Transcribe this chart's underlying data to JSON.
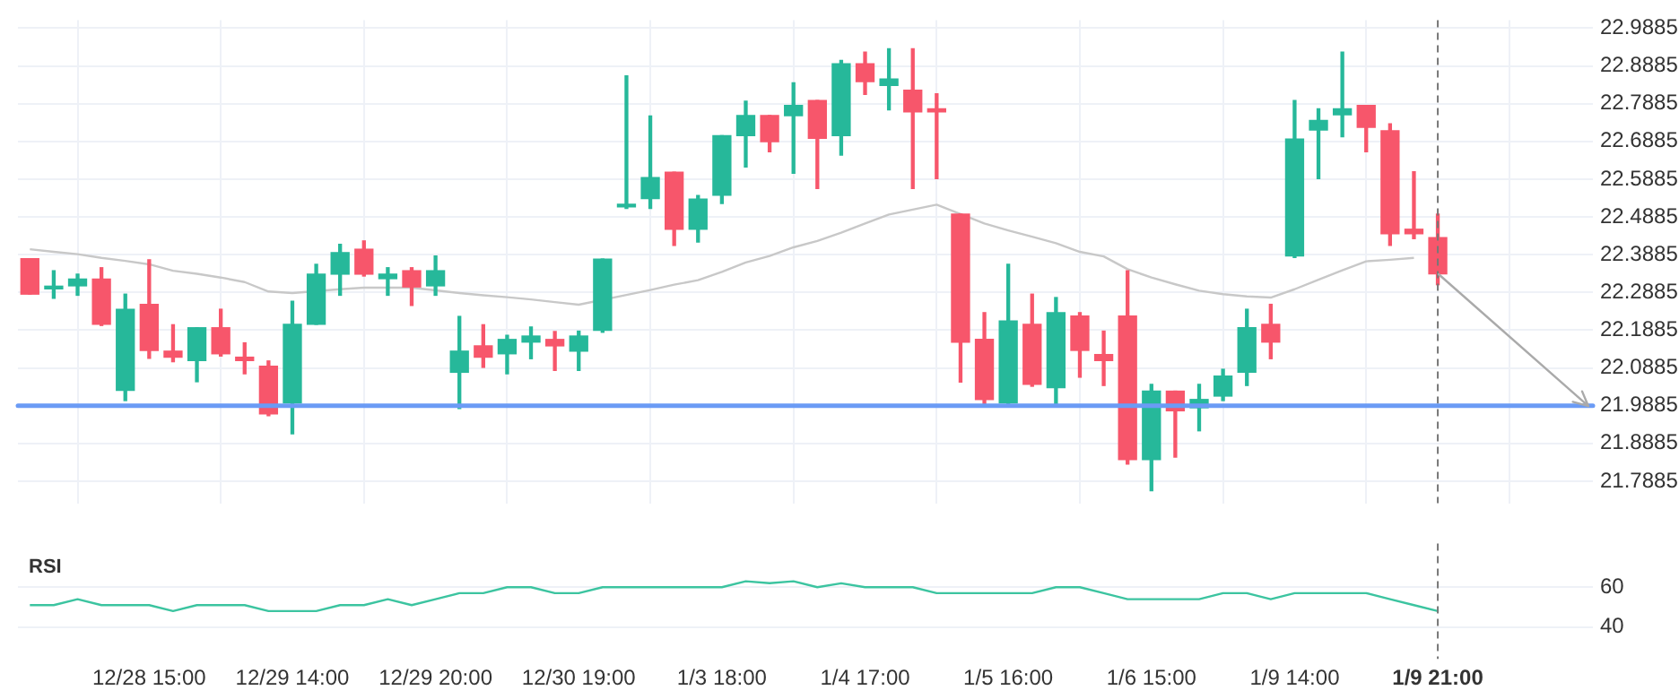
{
  "chart_data": [
    {
      "type": "candlestick",
      "categories": [
        null,
        null,
        null,
        null,
        null,
        "12/28 15:00",
        null,
        null,
        null,
        null,
        null,
        "12/29 14:00",
        null,
        null,
        null,
        null,
        null,
        "12/29 20:00",
        null,
        null,
        null,
        null,
        null,
        "12/30 19:00",
        null,
        null,
        null,
        null,
        null,
        "1/3 18:00",
        null,
        null,
        null,
        null,
        null,
        "1/4 17:00",
        null,
        null,
        null,
        null,
        null,
        "1/5 16:00",
        null,
        null,
        null,
        null,
        null,
        "1/6 15:00",
        null,
        null,
        null,
        null,
        null,
        "1/9 14:00",
        null,
        null,
        null,
        null,
        null,
        "1/9 21:00",
        null,
        null,
        null,
        null,
        null,
        null
      ],
      "ohlc": [
        [
          22.378,
          22.378,
          22.284,
          22.284
        ],
        [
          22.298,
          22.346,
          22.273,
          22.301
        ],
        [
          22.306,
          22.337,
          22.281,
          22.324
        ],
        [
          22.324,
          22.354,
          22.201,
          22.204
        ],
        [
          22.029,
          22.284,
          22.002,
          22.244
        ],
        [
          22.257,
          22.375,
          22.114,
          22.135
        ],
        [
          22.133,
          22.203,
          22.105,
          22.117
        ],
        [
          22.108,
          22.195,
          22.052,
          22.195
        ],
        [
          22.195,
          22.244,
          22.12,
          22.126
        ],
        [
          22.117,
          22.155,
          22.073,
          22.108
        ],
        [
          22.093,
          22.107,
          21.962,
          21.967
        ],
        [
          21.996,
          22.265,
          21.914,
          22.204
        ],
        [
          22.204,
          22.363,
          22.204,
          22.337
        ],
        [
          22.337,
          22.416,
          22.281,
          22.394
        ],
        [
          22.403,
          22.425,
          22.332,
          22.337
        ],
        [
          22.325,
          22.354,
          22.281,
          22.337
        ],
        [
          22.346,
          22.354,
          22.254,
          22.303
        ],
        [
          22.306,
          22.385,
          22.281,
          22.346
        ],
        [
          22.077,
          22.225,
          21.981,
          22.133
        ],
        [
          22.147,
          22.203,
          22.09,
          22.117
        ],
        [
          22.126,
          22.175,
          22.073,
          22.164
        ],
        [
          22.157,
          22.197,
          22.113,
          22.173
        ],
        [
          22.164,
          22.185,
          22.082,
          22.147
        ],
        [
          22.133,
          22.186,
          22.082,
          22.173
        ],
        [
          22.188,
          22.377,
          22.183,
          22.377
        ],
        [
          22.515,
          22.862,
          22.511,
          22.518
        ],
        [
          22.537,
          22.756,
          22.511,
          22.593
        ],
        [
          22.607,
          22.607,
          22.413,
          22.456
        ],
        [
          22.456,
          22.545,
          22.422,
          22.536
        ],
        [
          22.546,
          22.704,
          22.524,
          22.704
        ],
        [
          22.704,
          22.795,
          22.621,
          22.757
        ],
        [
          22.757,
          22.757,
          22.661,
          22.688
        ],
        [
          22.757,
          22.844,
          22.604,
          22.784
        ],
        [
          22.797,
          22.797,
          22.564,
          22.697
        ],
        [
          22.704,
          22.903,
          22.652,
          22.894
        ],
        [
          22.894,
          22.925,
          22.813,
          22.847
        ],
        [
          22.837,
          22.934,
          22.772,
          22.854
        ],
        [
          22.824,
          22.934,
          22.564,
          22.767
        ],
        [
          22.775,
          22.815,
          22.59,
          22.767
        ],
        [
          22.496,
          22.496,
          22.051,
          22.157
        ],
        [
          22.164,
          22.235,
          21.993,
          22.005
        ],
        [
          21.996,
          22.363,
          21.993,
          22.213
        ],
        [
          22.204,
          22.284,
          22.04,
          22.045
        ],
        [
          22.036,
          22.275,
          21.993,
          22.235
        ],
        [
          22.226,
          22.235,
          22.064,
          22.135
        ],
        [
          22.124,
          22.186,
          22.042,
          22.108
        ],
        [
          22.226,
          22.346,
          21.834,
          21.846
        ],
        [
          21.846,
          22.045,
          21.763,
          22.027
        ],
        [
          22.027,
          22.027,
          21.852,
          21.975
        ],
        [
          21.983,
          22.045,
          21.922,
          22.005
        ],
        [
          22.014,
          22.085,
          22.002,
          22.067
        ],
        [
          22.077,
          22.244,
          22.042,
          22.195
        ],
        [
          22.204,
          22.257,
          22.113,
          22.157
        ],
        [
          22.385,
          22.797,
          22.381,
          22.695
        ],
        [
          22.719,
          22.775,
          22.59,
          22.744
        ],
        [
          22.759,
          22.925,
          22.701,
          22.775
        ],
        [
          22.784,
          22.784,
          22.661,
          22.726
        ],
        [
          22.717,
          22.735,
          22.413,
          22.444
        ],
        [
          22.456,
          22.608,
          22.431,
          22.444
        ],
        [
          22.434,
          22.496,
          22.309,
          22.338
        ],
        null,
        null,
        null,
        null,
        null,
        null
      ],
      "colors": [
        "#f7566b",
        "#26b89a",
        "#26b89a",
        "#f7566b",
        "#26b89a",
        "#f7566b",
        "#f7566b",
        "#26b89a",
        "#f7566b",
        "#f7566b",
        "#f7566b",
        "#26b89a",
        "#26b89a",
        "#26b89a",
        "#f7566b",
        "#26b89a",
        "#f7566b",
        "#26b89a",
        "#26b89a",
        "#f7566b",
        "#26b89a",
        "#26b89a",
        "#f7566b",
        "#26b89a",
        "#26b89a",
        "#26b89a",
        "#26b89a",
        "#f7566b",
        "#26b89a",
        "#26b89a",
        "#26b89a",
        "#f7566b",
        "#26b89a",
        "#f7566b",
        "#26b89a",
        "#f7566b",
        "#26b89a",
        "#f7566b",
        "#f7566b",
        "#f7566b",
        "#f7566b",
        "#26b89a",
        "#f7566b",
        "#26b89a",
        "#f7566b",
        "#f7566b",
        "#f7566b",
        "#26b89a",
        "#f7566b",
        "#26b89a",
        "#26b89a",
        "#26b89a",
        "#f7566b",
        "#26b89a",
        "#26b89a",
        "#26b89a",
        "#f7566b",
        "#f7566b",
        "#f7566b",
        "#f7566b",
        null,
        null,
        null,
        null,
        null,
        null
      ],
      "series": [
        {
          "type": "line",
          "color": "#c8c8c8",
          "values": [
            22.403,
            22.396,
            22.39,
            22.38,
            22.372,
            22.363,
            22.346,
            22.338,
            22.328,
            22.316,
            22.291,
            22.287,
            null,
            22.297,
            22.301,
            22.301,
            22.301,
            22.294,
            22.287,
            22.281,
            22.276,
            22.27,
            22.263,
            22.256,
            null,
            22.282,
            22.295,
            22.309,
            22.321,
            22.343,
            22.368,
            22.385,
            22.408,
            22.425,
            22.447,
            22.471,
            22.495,
            22.508,
            22.521,
            22.496,
            22.471,
            22.453,
            22.436,
            22.419,
            22.396,
            22.384,
            22.35,
            22.328,
            22.31,
            22.293,
            22.284,
            22.278,
            22.275,
            22.297,
            22.322,
            22.347,
            22.371,
            22.375,
            22.38,
            null,
            null,
            null,
            null,
            null,
            null,
            null
          ]
        }
      ],
      "ylim": [
        21.73,
        23.01
      ],
      "yticks": [
        21.7885,
        21.8885,
        21.9885,
        22.0885,
        22.1885,
        22.2885,
        22.3885,
        22.4885,
        22.5885,
        22.6885,
        22.7885,
        22.8885,
        22.9885
      ],
      "ref_lines": [
        {
          "axis": "y",
          "value": 21.9885,
          "color": "#6b9bf5"
        },
        {
          "axis": "x",
          "value": "1/9 21:00",
          "color": "#777777",
          "line_style": "dashed"
        }
      ],
      "grid": true,
      "tick_labels": "y",
      "marker": "none"
    },
    {
      "type": "line",
      "title": "RSI",
      "categories": [
        null,
        null,
        null,
        null,
        null,
        "12/28 15:00",
        null,
        null,
        null,
        null,
        null,
        "12/29 14:00",
        null,
        null,
        null,
        null,
        null,
        "12/29 20:00",
        null,
        null,
        null,
        null,
        null,
        "12/30 19:00",
        null,
        null,
        null,
        null,
        null,
        "1/3 18:00",
        null,
        null,
        null,
        null,
        null,
        "1/4 17:00",
        null,
        null,
        null,
        null,
        null,
        "1/5 16:00",
        null,
        null,
        null,
        null,
        null,
        "1/6 15:00",
        null,
        null,
        null,
        null,
        null,
        "1/9 14:00",
        null,
        null,
        null,
        null,
        null,
        "1/9 21:00",
        null,
        null,
        null,
        null,
        null,
        null
      ],
      "series": [
        {
          "color": "#3cc4a0",
          "values": [
            51,
            51,
            54,
            51,
            51,
            51,
            48,
            51,
            51,
            51,
            48,
            48,
            48,
            51,
            51,
            54,
            51,
            54,
            57,
            57,
            60,
            60,
            57,
            57,
            60,
            60,
            60,
            60,
            60,
            60,
            63,
            62,
            63,
            60,
            62,
            60,
            60,
            60,
            57,
            57,
            57,
            57,
            57,
            60,
            60,
            57,
            54,
            54,
            54,
            54,
            57,
            57,
            54,
            57,
            57,
            57,
            57,
            54,
            51,
            48,
            null,
            null,
            null,
            null,
            null,
            null
          ]
        }
      ],
      "ylim": [
        24,
        82
      ],
      "yticks": [
        40,
        60
      ],
      "ref_lines": [
        {
          "axis": "x",
          "value": "1/9 21:00",
          "color": "#777777",
          "line_style": "dashed"
        }
      ],
      "grid": "y",
      "marker": "none"
    }
  ]
}
